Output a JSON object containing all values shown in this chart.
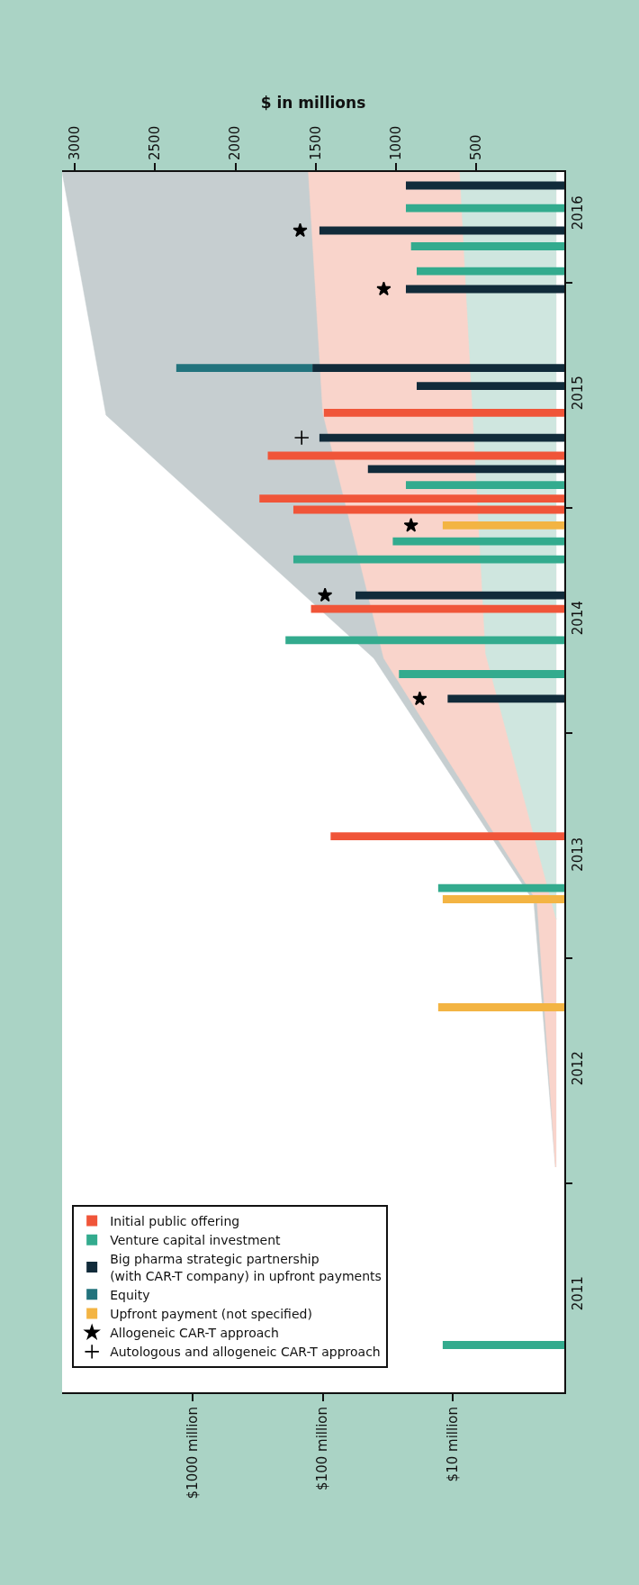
{
  "chart_data": {
    "type": "bar",
    "orientation": "horizontal",
    "log": "x",
    "legend": "bottom left",
    "xlim": [
      10000,
      1.4
    ],
    "xticks": [
      {
        "value": 1000,
        "label": "$1000 million"
      },
      {
        "value": 100,
        "label": "$100 million"
      },
      {
        "value": 10,
        "label": "$10 million"
      }
    ],
    "x2label": "$ in millions",
    "x2lim": [
      3080,
      -50
    ],
    "x2ticks": [
      {
        "value": 3000,
        "label": "3000"
      },
      {
        "value": 2500,
        "label": "2500"
      },
      {
        "value": 2000,
        "label": "2000"
      },
      {
        "value": 1500,
        "label": "1500"
      },
      {
        "value": 1000,
        "label": "1000"
      },
      {
        "value": 500,
        "label": "500"
      }
    ],
    "ylim": [
      2011.07,
      2016.49
    ],
    "yticks": [
      {
        "value": 2012,
        "label": null
      },
      {
        "value": 2013,
        "label": null
      },
      {
        "value": 2014,
        "label": null
      },
      {
        "value": 2015,
        "label": null
      },
      {
        "value": 2016,
        "label": null
      },
      {
        "value": 2011.5,
        "label": "2011"
      },
      {
        "value": 2012.5,
        "label": "2012"
      },
      {
        "value": 2013.45,
        "label": "2013"
      },
      {
        "value": 2014.5,
        "label": "2014"
      },
      {
        "value": 2015.5,
        "label": "2015"
      },
      {
        "value": 2016.3,
        "label": "2016"
      }
    ],
    "series": [
      {
        "type": "area",
        "axis": "x2",
        "color": "#c6ced0",
        "x": [
          2012.07,
          2013.25,
          2014.33,
          2015.41,
          2016.49
        ],
        "values": [
          5,
          140,
          1137,
          2806,
          3080
        ]
      },
      {
        "type": "area",
        "axis": "x2",
        "color": "#f9d4cb",
        "x": [
          2012.07,
          2013.25,
          2014.33,
          2015.42,
          2016.49
        ],
        "values": [
          5,
          120,
          1075,
          1455,
          1545
        ]
      },
      {
        "type": "area",
        "axis": "x2",
        "color": "#cfe6df",
        "x": [
          2013.17,
          2014.35,
          2016.49
        ],
        "values": [
          0,
          440,
          601
        ]
      },
      {
        "name": "Initial public offering",
        "color": "#f05539",
        "x": [
          2013.54,
          2014.55,
          2014.99,
          2015.04,
          2015.23,
          2015.42
        ],
        "values": [
          87,
          123,
          168,
          306,
          264,
          98
        ]
      },
      {
        "name": "Venture capital investment",
        "color": "#33ab8e",
        "x": [
          2011.28,
          2013.31,
          2014.26,
          2014.41,
          2014.77,
          2014.85,
          2015.1,
          2016.05,
          2016.16,
          2016.33
        ],
        "values": [
          12,
          13,
          26,
          193,
          168,
          29,
          23,
          19,
          21,
          23
        ]
      },
      {
        "name": "Big pharma strategic partnership\n(with CAR-T company) in upfront payments",
        "color": "#112b3a",
        "x": [
          2014.15,
          2014.61,
          2015.17,
          2015.31,
          2015.54,
          2015.62,
          2015.97,
          2016.23,
          2016.43
        ],
        "values": [
          11,
          56,
          45,
          106,
          19,
          120,
          23,
          106,
          23
        ]
      },
      {
        "name": "Equity",
        "color": "#22737d",
        "x": [
          2015.62
        ],
        "values": [
          1210
        ],
        "base": [
          120
        ]
      },
      {
        "name": "Upfront payment (not specified)",
        "color": "#f3b443",
        "x": [
          2012.78,
          2013.26,
          2014.92
        ],
        "values": [
          13,
          12,
          12
        ]
      },
      {
        "name": "Allogeneic CAR-T approach",
        "type": "scatter",
        "marker": "star",
        "color": "#000000",
        "x": [
          2014.15,
          2014.61,
          2014.92,
          2015.97,
          2016.23
        ],
        "values": [
          18,
          96,
          21,
          34,
          149
        ]
      },
      {
        "name": "Autologous and allogeneic CAR-T approach",
        "type": "scatter",
        "marker": "cross",
        "color": "#000000",
        "x": [
          2015.31
        ],
        "values": [
          145
        ]
      }
    ]
  }
}
